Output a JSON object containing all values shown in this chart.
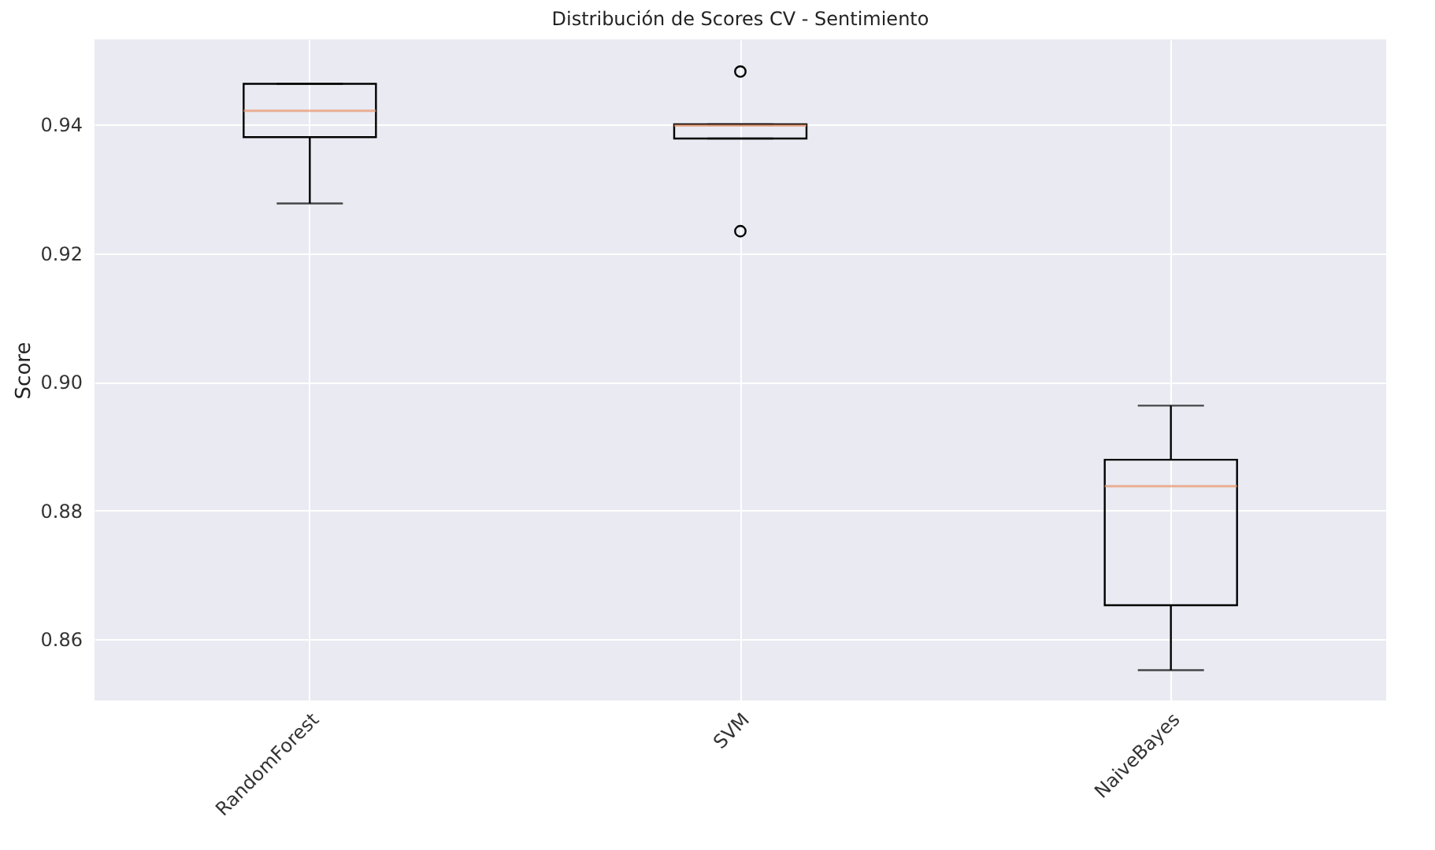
{
  "chart_data": {
    "type": "box",
    "title": "Distribución de Scores CV - Sentimiento",
    "ylabel": "Score",
    "categories": [
      "RandomForest",
      "SVM",
      "NaiveBayes"
    ],
    "boxes": [
      {
        "low": 0.9277,
        "q1": 0.938,
        "median": 0.9421,
        "q3": 0.9463,
        "high": 0.9463
      },
      {
        "low": 0.9378,
        "q1": 0.9378,
        "median": 0.9398,
        "q3": 0.94,
        "high": 0.94,
        "outliers": [
          0.9482,
          0.9234
        ]
      },
      {
        "low": 0.8552,
        "q1": 0.8653,
        "median": 0.8838,
        "q3": 0.8879,
        "high": 0.8963
      }
    ],
    "ylim": [
      0.8505,
      0.9532
    ],
    "yticks": [
      0.86,
      0.88,
      {
        "value": 0.9,
        "label": "0.90"
      },
      0.92,
      0.94
    ],
    "grid": true
  }
}
